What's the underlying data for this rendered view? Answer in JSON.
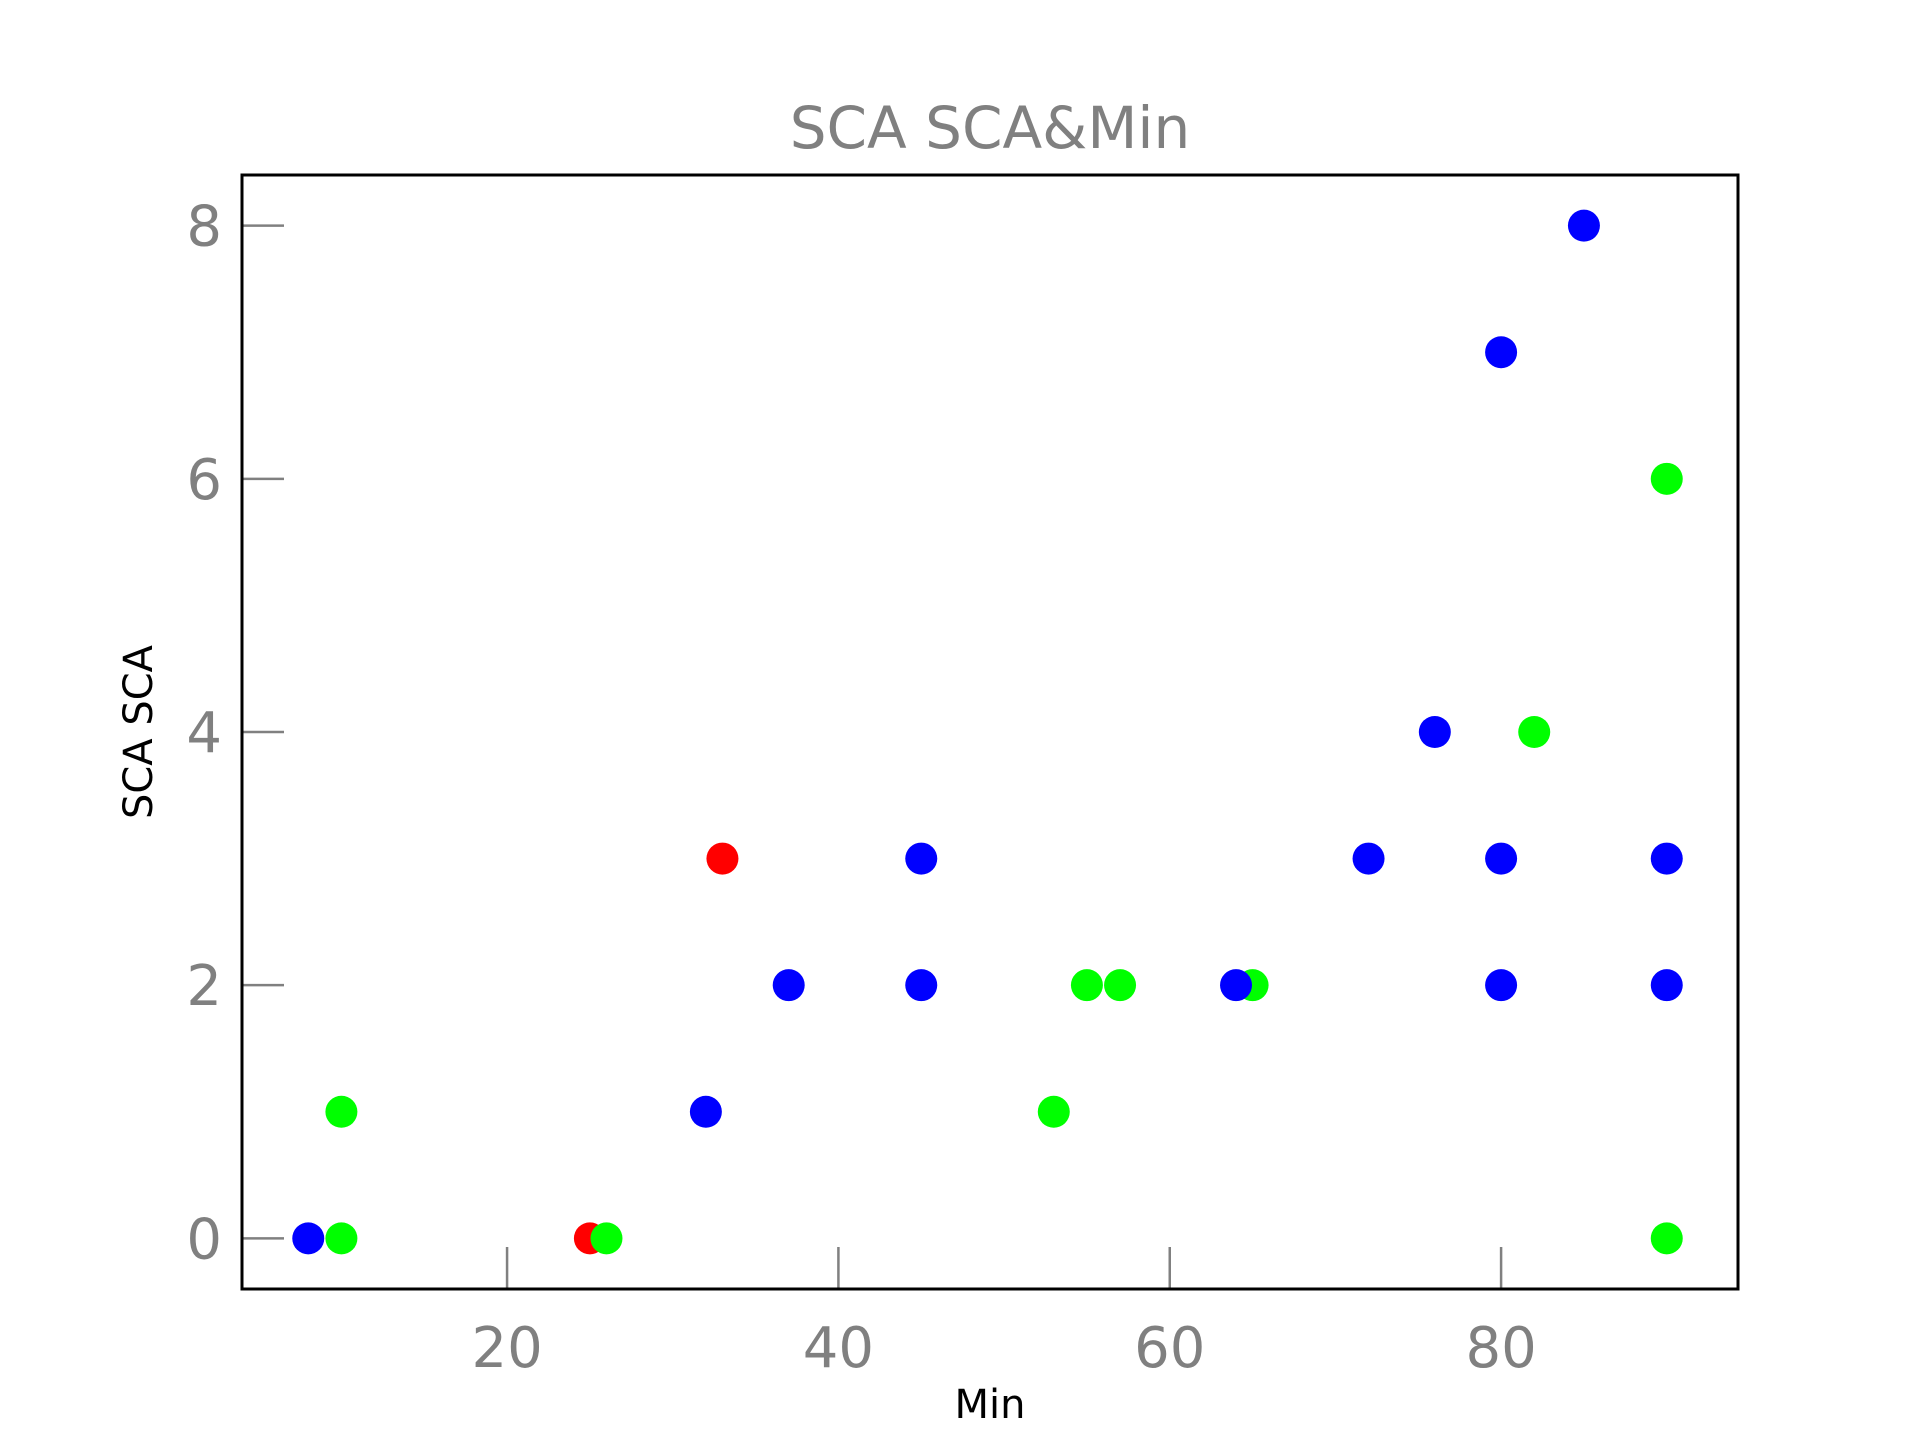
{
  "chart_data": {
    "type": "scatter",
    "title": "SCA SCA&Min",
    "xlabel": "Min",
    "ylabel": "SCA SCA",
    "xlim": [
      4,
      94.3
    ],
    "ylim": [
      -0.4,
      8.4
    ],
    "xticks": [
      20,
      40,
      60,
      80
    ],
    "yticks": [
      0,
      2,
      4,
      6,
      8
    ],
    "grid": false,
    "colors": {
      "blue": "#0000ff",
      "green": "#00ff00",
      "red": "#ff0000"
    },
    "points": [
      {
        "x": 8,
        "y": 0,
        "color": "blue"
      },
      {
        "x": 10,
        "y": 0,
        "color": "green"
      },
      {
        "x": 10,
        "y": 1,
        "color": "green"
      },
      {
        "x": 25,
        "y": 0,
        "color": "red"
      },
      {
        "x": 26,
        "y": 0,
        "color": "green"
      },
      {
        "x": 32,
        "y": 1,
        "color": "blue"
      },
      {
        "x": 33,
        "y": 3,
        "color": "red"
      },
      {
        "x": 37,
        "y": 2,
        "color": "blue"
      },
      {
        "x": 45,
        "y": 3,
        "color": "blue"
      },
      {
        "x": 45,
        "y": 2,
        "color": "blue"
      },
      {
        "x": 53,
        "y": 1,
        "color": "green"
      },
      {
        "x": 55,
        "y": 2,
        "color": "green"
      },
      {
        "x": 57,
        "y": 2,
        "color": "green"
      },
      {
        "x": 65,
        "y": 2,
        "color": "green"
      },
      {
        "x": 64,
        "y": 2,
        "color": "blue"
      },
      {
        "x": 72,
        "y": 3,
        "color": "blue"
      },
      {
        "x": 76,
        "y": 4,
        "color": "blue"
      },
      {
        "x": 80,
        "y": 7,
        "color": "blue"
      },
      {
        "x": 80,
        "y": 3,
        "color": "blue"
      },
      {
        "x": 80,
        "y": 2,
        "color": "blue"
      },
      {
        "x": 82,
        "y": 4,
        "color": "green"
      },
      {
        "x": 85,
        "y": 8,
        "color": "blue"
      },
      {
        "x": 90,
        "y": 6,
        "color": "green"
      },
      {
        "x": 90,
        "y": 3,
        "color": "blue"
      },
      {
        "x": 90,
        "y": 2,
        "color": "blue"
      },
      {
        "x": 90,
        "y": 0,
        "color": "green"
      }
    ]
  }
}
